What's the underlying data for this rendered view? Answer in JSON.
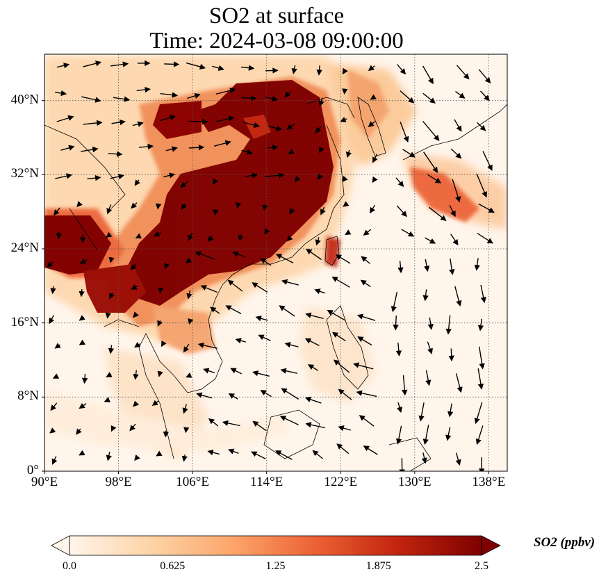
{
  "title": {
    "line1": "SO2 at surface",
    "line2": "Time: 2024-03-08 09:00:00"
  },
  "map": {
    "lon_range": [
      90,
      140
    ],
    "lat_range": [
      0,
      45
    ],
    "lat_ticks": [
      {
        "value": 0,
        "label": "0°"
      },
      {
        "value": 8,
        "label": "8°N"
      },
      {
        "value": 16,
        "label": "16°N"
      },
      {
        "value": 24,
        "label": "24°N"
      },
      {
        "value": 32,
        "label": "32°N"
      },
      {
        "value": 40,
        "label": "40°N"
      }
    ],
    "lon_ticks": [
      {
        "value": 90,
        "label": "90°E"
      },
      {
        "value": 98,
        "label": "98°E"
      },
      {
        "value": 106,
        "label": "106°E"
      },
      {
        "value": 114,
        "label": "114°E"
      },
      {
        "value": 122,
        "label": "122°E"
      },
      {
        "value": 130,
        "label": "130°E"
      },
      {
        "value": 138,
        "label": "138°E"
      }
    ],
    "gridlines": true,
    "colors": {
      "background": "#fff5eb",
      "low": "#fdd9b0",
      "mid": "#f08a52",
      "high": "#c1240e",
      "max": "#7f0000",
      "coastline": "#000000",
      "vectors": "#000000"
    }
  },
  "colorbar": {
    "label": "SO2 (ppbv)",
    "min": 0.0,
    "max": 2.5,
    "extend": "both",
    "ticks": [
      {
        "value": 0.0,
        "label": "0.0"
      },
      {
        "value": 0.625,
        "label": "0.625"
      },
      {
        "value": 1.25,
        "label": "1.25"
      },
      {
        "value": 1.875,
        "label": "1.875"
      },
      {
        "value": 2.5,
        "label": "2.5"
      }
    ],
    "stops": [
      "#fff5eb",
      "#fdd3a6",
      "#fca46a",
      "#ec6034",
      "#c1240e",
      "#7f0000"
    ]
  }
}
